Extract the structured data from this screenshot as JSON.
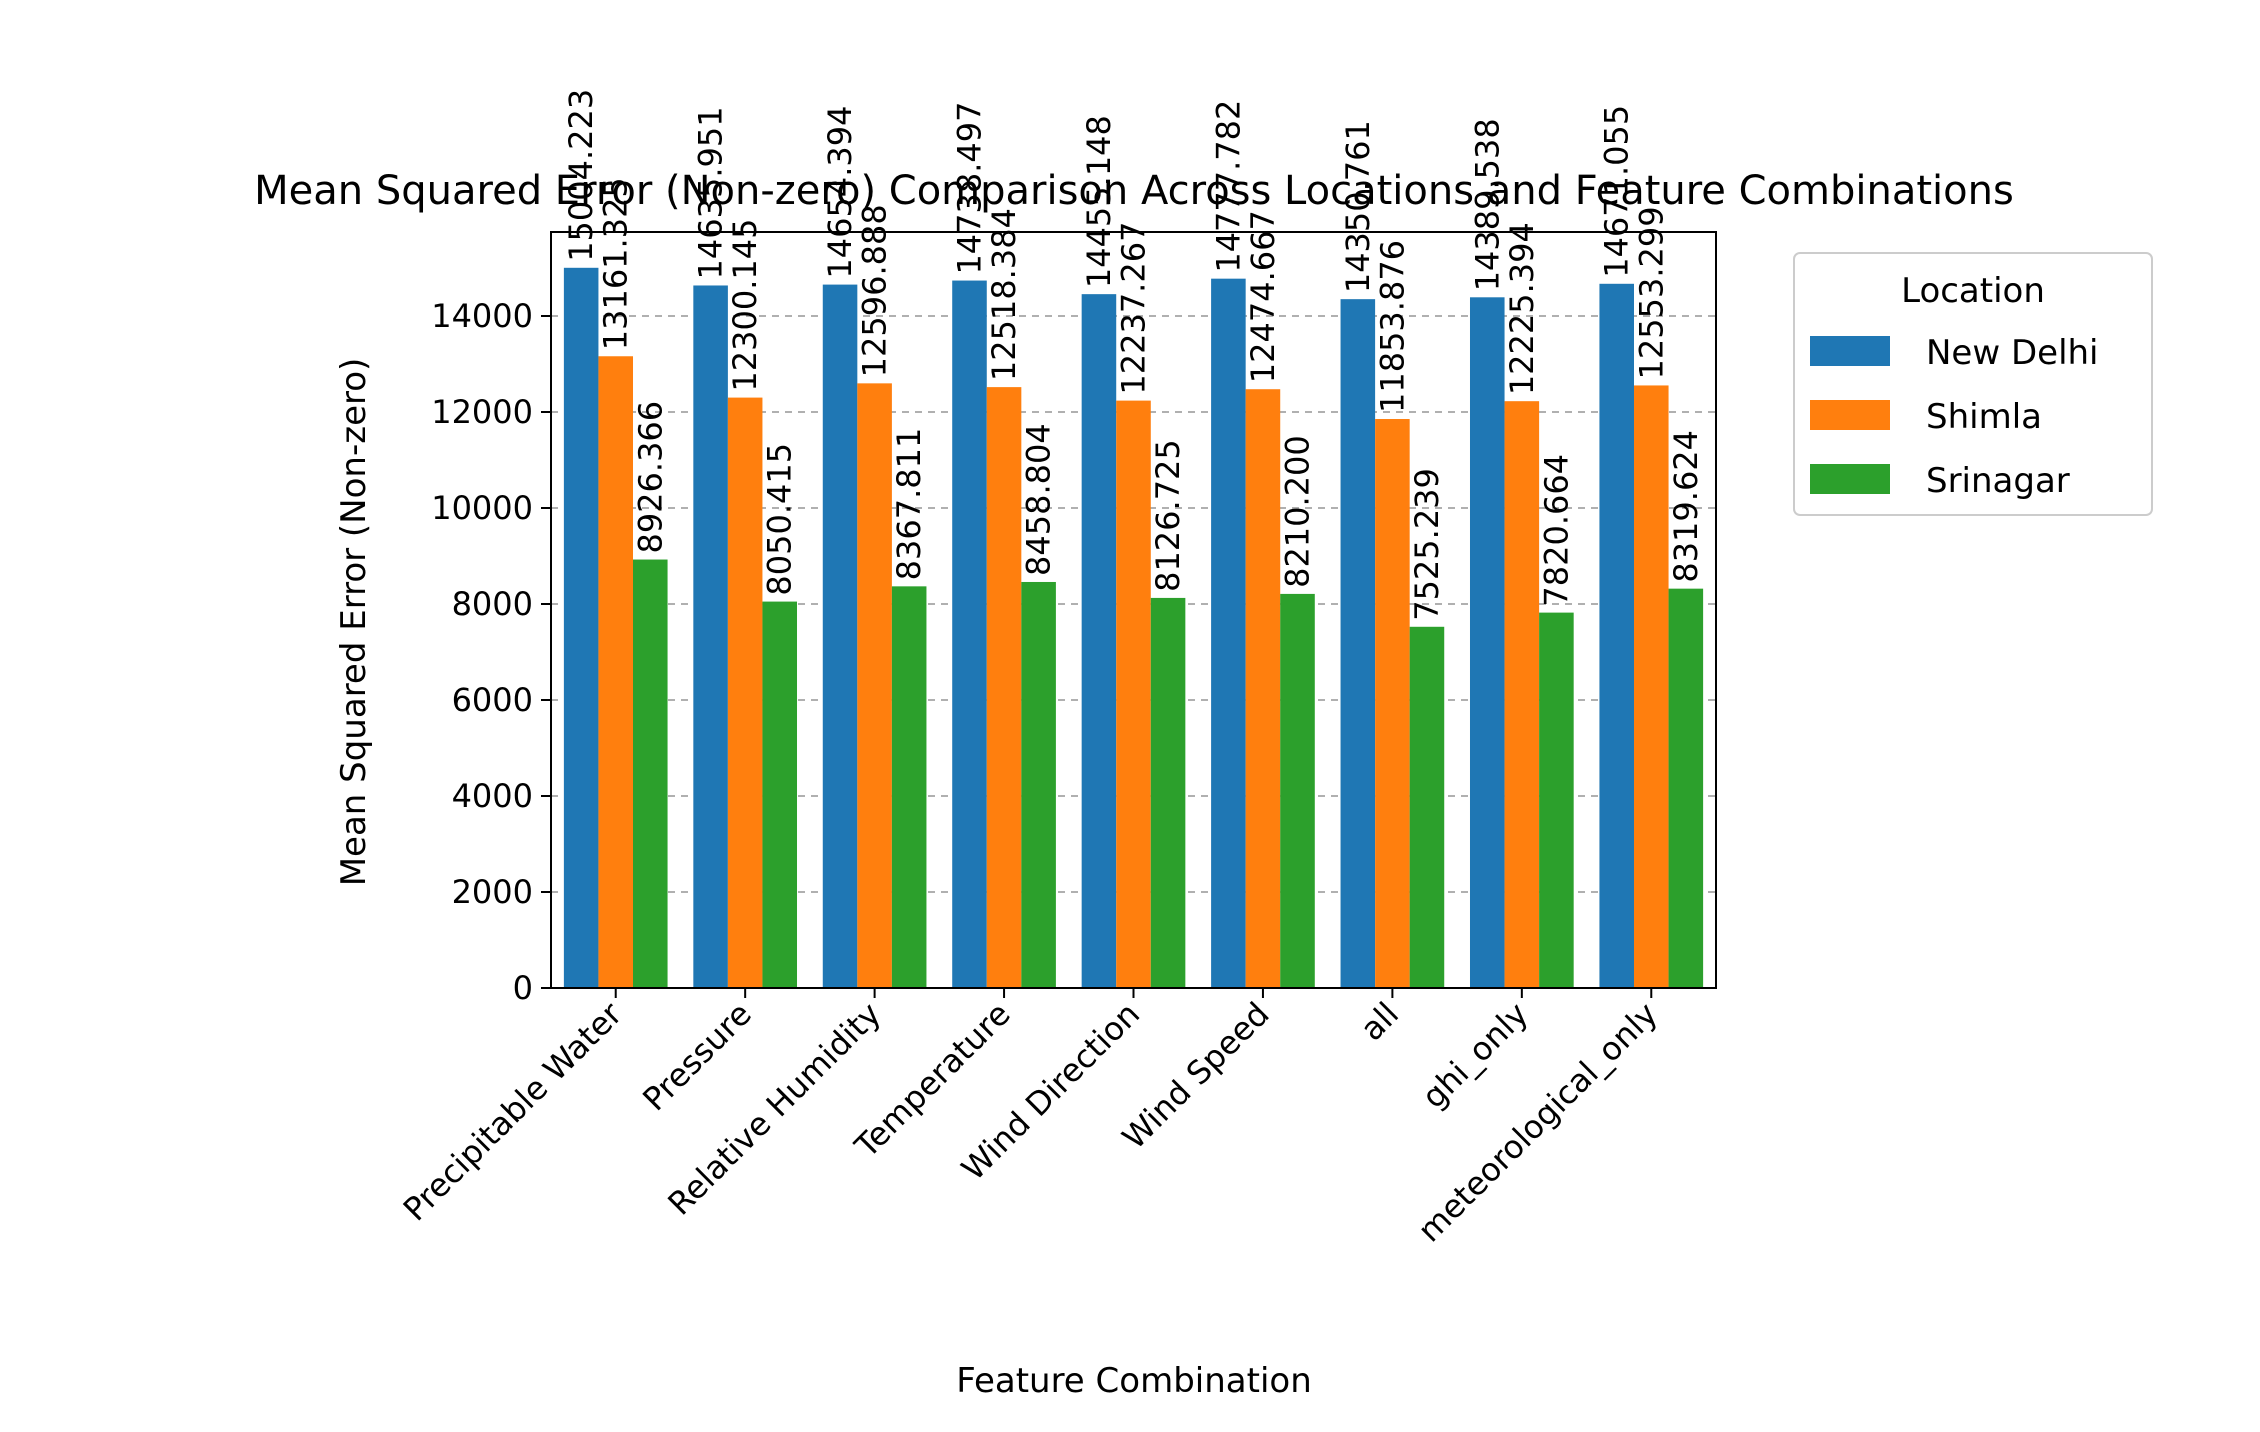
{
  "chart_data": {
    "type": "bar",
    "title": "Mean Squared Error (Non-zero) Comparison Across Locations and Feature Combinations",
    "xlabel": "Feature Combination",
    "ylabel": "Mean Squared Error (Non-zero)",
    "ylim": [
      0,
      15750
    ],
    "yticks": [
      0,
      2000,
      4000,
      6000,
      8000,
      10000,
      12000,
      14000
    ],
    "ytick_labels": [
      "0",
      "2000",
      "4000",
      "6000",
      "8000",
      "10000",
      "12000",
      "14000"
    ],
    "grid": "y-dashed",
    "categories": [
      "Precipitable Water",
      "Pressure",
      "Relative Humidity",
      "Temperature",
      "Wind Direction",
      "Wind Speed",
      "all",
      "ghi_only",
      "meteorological_only"
    ],
    "series": [
      {
        "name": "New Delhi",
        "color": "#1f77b4",
        "values": [
          15004.223,
          14635.951,
          14654.394,
          14738.497,
          14455.148,
          14777.782,
          14350.761,
          14389.538,
          14671.055
        ],
        "labels": [
          "15004.223",
          "14635.951",
          "14654.394",
          "14738.497",
          "14455.148",
          "14777.782",
          "14350.761",
          "14389.538",
          "14671.055"
        ]
      },
      {
        "name": "Shimla",
        "color": "#ff7f0e",
        "values": [
          13161.325,
          12300.145,
          12596.888,
          12518.384,
          12237.267,
          12474.667,
          11853.876,
          12225.394,
          12553.299
        ],
        "labels": [
          "13161.325",
          "12300.145",
          "12596.888",
          "12518.384",
          "12237.267",
          "12474.667",
          "11853.876",
          "12225.394",
          "12553.299"
        ]
      },
      {
        "name": "Srinagar",
        "color": "#2ca02c",
        "values": [
          8926.366,
          8050.415,
          8367.811,
          8458.804,
          8126.725,
          8210.2,
          7525.239,
          7820.664,
          8319.624
        ],
        "labels": [
          "8926.366",
          "8050.415",
          "8367.811",
          "8458.804",
          "8126.725",
          "8210.200",
          "7525.239",
          "7820.664",
          "8319.624"
        ]
      }
    ],
    "legend": {
      "title": "Location",
      "placement": "outside-right-top"
    }
  }
}
